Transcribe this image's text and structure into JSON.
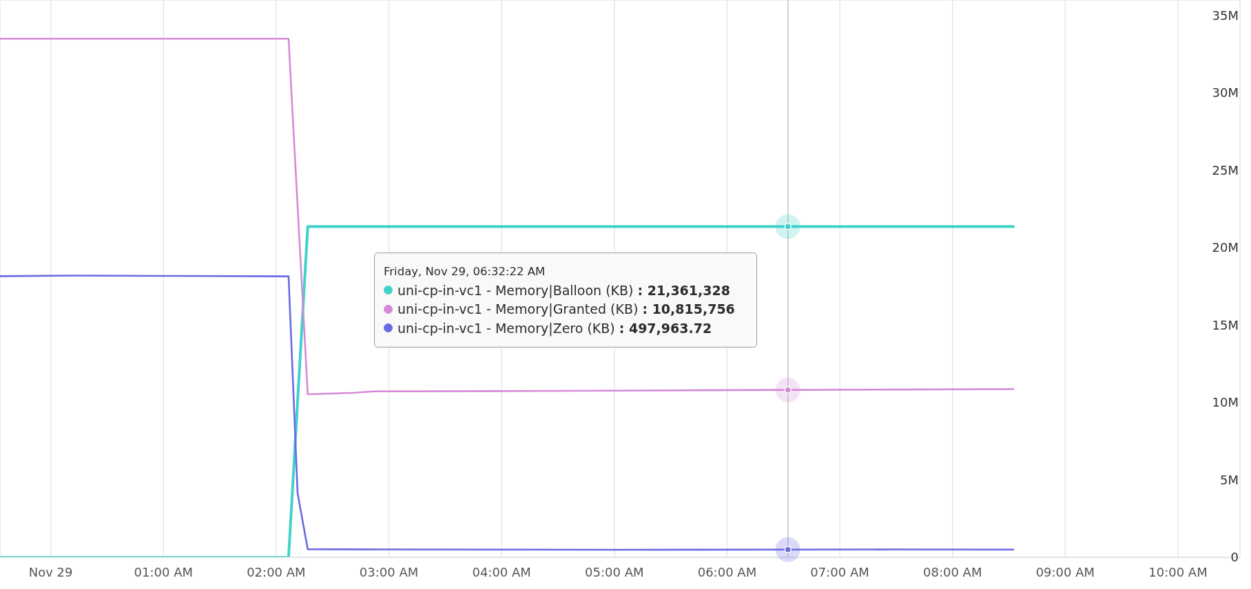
{
  "chart_data": {
    "type": "line",
    "series": [
      {
        "name": "uni-cp-in-vc1 - Memory|Balloon (KB)",
        "color": "#41d2c9",
        "x": [
          -0.45,
          2.11,
          2.28,
          6.539444,
          8.54
        ],
        "values": [
          0,
          0,
          21361328,
          21361328,
          21361328
        ]
      },
      {
        "name": "uni-cp-in-vc1 - Memory|Granted (KB)",
        "color": "#d58ad8",
        "x": [
          -0.45,
          2.11,
          2.28,
          2.7,
          2.87,
          4.0,
          5.0,
          6.539444,
          7.5,
          8.54
        ],
        "values": [
          33500000,
          33500000,
          10530000,
          10630000,
          10720000,
          10740000,
          10770000,
          10815756,
          10840000,
          10870000
        ]
      },
      {
        "name": "uni-cp-in-vc1 - Memory|Zero (KB)",
        "color": "#6a6ae3",
        "x": [
          -0.45,
          0.2,
          1.0,
          2.11,
          2.19,
          2.28,
          3.0,
          4.0,
          5.0,
          6.539444,
          7.5,
          8.54
        ],
        "values": [
          18160000,
          18200000,
          18180000,
          18150000,
          4140000,
          520000,
          510000,
          500000,
          490000,
          497963.72,
          510000,
          500000
        ]
      }
    ],
    "xlim": [
      -0.45,
      10.55
    ],
    "xticks": [
      {
        "value": 0,
        "label": "Nov 29"
      },
      {
        "value": 1,
        "label": "01:00 AM"
      },
      {
        "value": 2,
        "label": "02:00 AM"
      },
      {
        "value": 3,
        "label": "03:00 AM"
      },
      {
        "value": 4,
        "label": "04:00 AM"
      },
      {
        "value": 5,
        "label": "05:00 AM"
      },
      {
        "value": 6,
        "label": "06:00 AM"
      },
      {
        "value": 7,
        "label": "07:00 AM"
      },
      {
        "value": 8,
        "label": "08:00 AM"
      },
      {
        "value": 9,
        "label": "09:00 AM"
      },
      {
        "value": 10,
        "label": "10:00 AM"
      }
    ],
    "ylim": [
      0,
      36000000
    ],
    "yticks": [
      0,
      {
        "value": 5000000,
        "label": "5M"
      },
      {
        "value": 10000000,
        "label": "10M"
      },
      {
        "value": 15000000,
        "label": "15M"
      },
      {
        "value": 20000000,
        "label": "20M"
      },
      {
        "value": 25000000,
        "label": "25M"
      },
      {
        "value": 30000000,
        "label": "30M"
      },
      {
        "value": 35000000,
        "label": "35M"
      }
    ],
    "grid": true,
    "legend": "center",
    "line_style": "solid",
    "ref_lines": [
      {
        "axis": "x",
        "value": 6.539444,
        "color": "#c4c4c4"
      }
    ],
    "annotations": [
      "Friday, Nov 29, 06:32:22 AM",
      ": 21,361,328",
      ": 10,815,756",
      ": 497,963.72"
    ]
  }
}
